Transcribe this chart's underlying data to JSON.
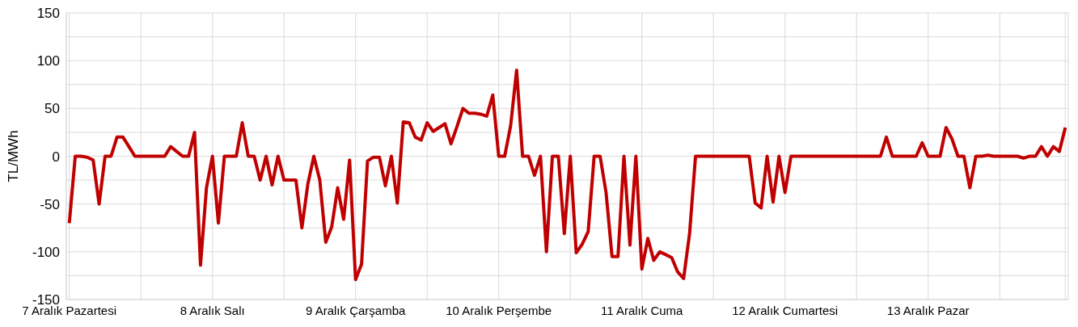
{
  "chart_data": {
    "type": "line",
    "ylabel": "TL/MWh",
    "categories": [
      "7 Aralık Pazartesi",
      null,
      null,
      null,
      null,
      null,
      null,
      null,
      null,
      null,
      null,
      null,
      null,
      null,
      null,
      null,
      null,
      null,
      null,
      null,
      null,
      null,
      null,
      null,
      "8 Aralık Salı",
      null,
      null,
      null,
      null,
      null,
      null,
      null,
      null,
      null,
      null,
      null,
      null,
      null,
      null,
      null,
      null,
      null,
      null,
      null,
      null,
      null,
      null,
      null,
      "9 Aralık Çarşamba",
      null,
      null,
      null,
      null,
      null,
      null,
      null,
      null,
      null,
      null,
      null,
      null,
      null,
      null,
      null,
      null,
      null,
      null,
      null,
      null,
      null,
      null,
      null,
      "10 Aralık Perşembe",
      null,
      null,
      null,
      null,
      null,
      null,
      null,
      null,
      null,
      null,
      null,
      null,
      null,
      null,
      null,
      null,
      null,
      null,
      null,
      null,
      null,
      null,
      null,
      "11 Aralık Cuma",
      null,
      null,
      null,
      null,
      null,
      null,
      null,
      null,
      null,
      null,
      null,
      null,
      null,
      null,
      null,
      null,
      null,
      null,
      null,
      null,
      null,
      null,
      null,
      "12 Aralık Cumartesi",
      null,
      null,
      null,
      null,
      null,
      null,
      null,
      null,
      null,
      null,
      null,
      null,
      null,
      null,
      null,
      null,
      null,
      null,
      null,
      null,
      null,
      null,
      null,
      "13 Aralık Pazar",
      null,
      null,
      null,
      null,
      null,
      null,
      null,
      null,
      null,
      null,
      null,
      null,
      null,
      null,
      null,
      null,
      null,
      null,
      null,
      null,
      null,
      null,
      null
    ],
    "series": [
      {
        "color": "#c00000",
        "values": [
          -70,
          0,
          0,
          -1,
          -4,
          -50,
          0,
          0,
          20,
          20,
          10,
          0,
          0,
          0,
          0,
          0,
          0,
          10,
          5,
          0,
          0,
          25,
          -114,
          -33,
          0,
          -70,
          0,
          0,
          0,
          35,
          0,
          0,
          -25,
          0,
          -30,
          0,
          -25,
          -25,
          -25,
          -75,
          -29,
          0,
          -25,
          -90,
          -74,
          -33,
          -66,
          -4,
          -129,
          -113,
          -5,
          -1,
          -1,
          -31,
          0,
          -49,
          36,
          35,
          20,
          17,
          35,
          26,
          30,
          34,
          13,
          31,
          50,
          45,
          45,
          44,
          42,
          64,
          0,
          0,
          32,
          90,
          0,
          0,
          -20,
          0,
          -100,
          0,
          0,
          -81,
          0,
          -101,
          -92,
          -79,
          0,
          0,
          -38,
          -105,
          -105,
          0,
          -93,
          0,
          -118,
          -86,
          -109,
          -100,
          -103,
          -106,
          -121,
          -128,
          -81,
          0,
          0,
          0,
          0,
          0,
          0,
          0,
          0,
          0,
          0,
          -49,
          -54,
          0,
          -48,
          0,
          -38,
          0,
          0,
          0,
          0,
          0,
          0,
          0,
          0,
          0,
          0,
          0,
          0,
          0,
          0,
          0,
          0,
          20,
          0,
          0,
          0,
          0,
          0,
          14,
          0,
          0,
          0,
          30,
          18,
          0,
          0,
          -33,
          0,
          0,
          1,
          0,
          0,
          0,
          0,
          0,
          -2,
          0,
          0,
          10,
          0,
          10,
          5,
          30
        ]
      }
    ],
    "ylim": [
      -150,
      150
    ],
    "yticks": [
      -150,
      {
        "value": -125,
        "label": null
      },
      -100,
      {
        "value": -75,
        "label": null
      },
      -50,
      {
        "value": -25,
        "label": null
      },
      0,
      {
        "value": 25,
        "label": null
      },
      50,
      {
        "value": 75,
        "label": null
      },
      100,
      {
        "value": 125,
        "label": null
      },
      150
    ],
    "grid": true,
    "legend": false,
    "marker": "none",
    "line_style": "solid"
  }
}
